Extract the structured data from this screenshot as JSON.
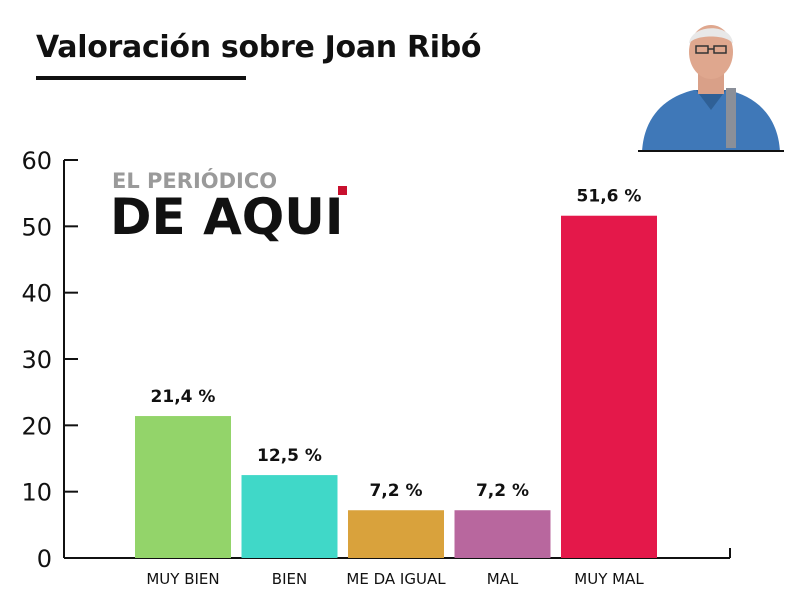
{
  "header": {
    "title": "Valoración sobre Joan Ribó"
  },
  "logo": {
    "line1": "EL PERIÓDICO",
    "line2": "DE AQUI",
    "accent_color": "#c8102e"
  },
  "chart_data": {
    "type": "bar",
    "title": "Valoración sobre Joan Ribó",
    "xlabel": "",
    "ylabel": "",
    "ylim": [
      0,
      60
    ],
    "yticks": [
      0,
      10,
      20,
      30,
      40,
      50,
      60
    ],
    "grid": false,
    "categories": [
      "MUY BIEN",
      "BIEN",
      "ME DA IGUAL",
      "MAL",
      "MUY MAL"
    ],
    "values": [
      21.4,
      12.5,
      7.2,
      7.2,
      51.6
    ],
    "value_labels": [
      "21,4 %",
      "12,5 %",
      "7,2 %",
      "7,2 %",
      "51,6 %"
    ],
    "colors": [
      "#93d46a",
      "#40d8c8",
      "#d9a23c",
      "#b8679e",
      "#e4184a"
    ]
  }
}
